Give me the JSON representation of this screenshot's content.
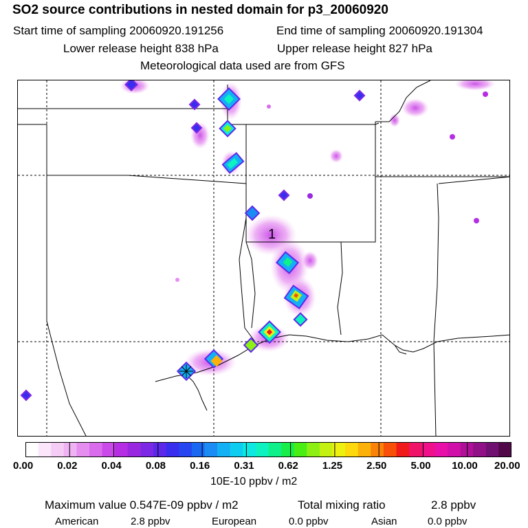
{
  "header": {
    "title": "SO2 source contributions in nested domain for p3_20060920",
    "start_time": "Start time of sampling 20060920.191256",
    "end_time": "End time of sampling 20060920.191304",
    "lower_release": "Lower release height  838 hPa",
    "upper_release": "Upper release height  827 hPa",
    "met_data": "Meteorological data used are from GFS"
  },
  "map": {
    "marker_label": "1",
    "colors": {
      "border": "#000000",
      "grid": "#000000"
    }
  },
  "colorbar": {
    "ticks": [
      "0.00",
      "0.02",
      "0.04",
      "0.08",
      "0.16",
      "0.31",
      "0.62",
      "1.25",
      "2.50",
      "5.00",
      "10.00",
      "20.00"
    ],
    "unit": "10E-10 ppbv / m2",
    "colors": [
      "#ffffff",
      "#fbe6fb",
      "#f5ccf5",
      "#efb2f2",
      "#e58ef0",
      "#d86ced",
      "#c94ae8",
      "#b52ee3",
      "#9a28e0",
      "#7d28e4",
      "#5c28ea",
      "#3a2eee",
      "#2546f0",
      "#1a68f2",
      "#1a8cf4",
      "#14b0f5",
      "#0fcdf1",
      "#0de8e2",
      "#0ef2c0",
      "#10f08a",
      "#18ee4a",
      "#4aee14",
      "#8cf014",
      "#c4f012",
      "#eef010",
      "#fcd80c",
      "#fcb00a",
      "#fa8208",
      "#f85008",
      "#f01a1a",
      "#f01468",
      "#f0108a",
      "#e810a8",
      "#d010a8",
      "#b01098",
      "#901088",
      "#701070",
      "#500848"
    ]
  },
  "stats": {
    "max_value": "Maximum value  0.547E-09 ppbv / m2",
    "total_label": "Total mixing ratio",
    "total_value": "2.8 ppbv",
    "american_label": "American",
    "american_value": "2.8 ppbv",
    "european_label": "European",
    "european_value": "0.0 ppbv",
    "asian_label": "Asian",
    "asian_value": "0.0 ppbv"
  }
}
